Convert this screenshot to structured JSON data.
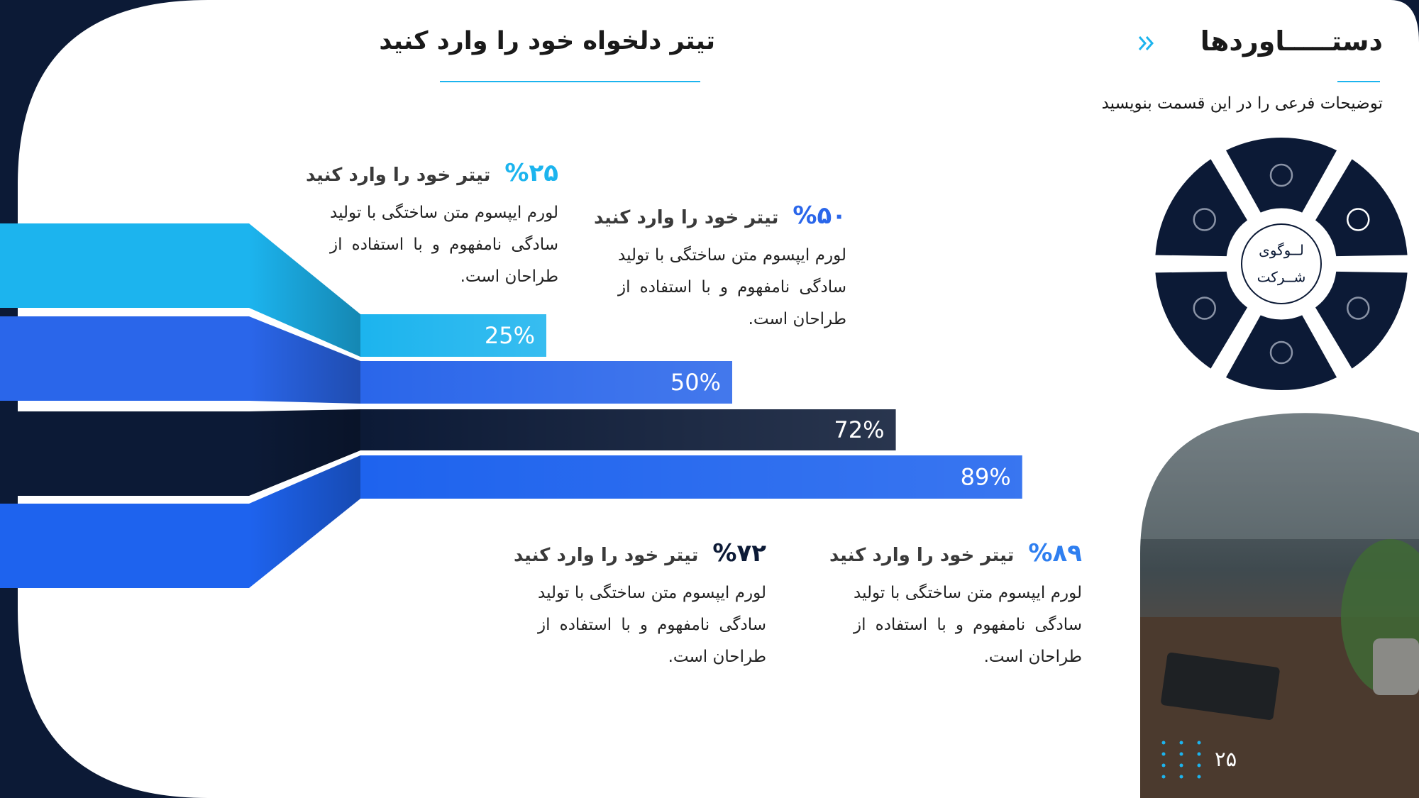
{
  "header": {
    "title": "دستـــــاوردها",
    "subtitle": "توضیحات فرعی را در این قسمت بنویسید",
    "page_number": "۲۵"
  },
  "main_title": "تیتر دلخواه خود را وارد کنید",
  "logo": [
    "لــوگوی",
    "شــرکت"
  ],
  "chart_data": {
    "type": "bar",
    "orientation": "horizontal",
    "values": [
      25,
      50,
      72,
      89
    ],
    "value_labels": [
      "25%",
      "50%",
      "72%",
      "89%"
    ],
    "colors": [
      "#1cb4ee",
      "#2a66ea",
      "#0c1a36",
      "#1e63ee"
    ],
    "xlim": [
      0,
      100
    ]
  },
  "cards": [
    {
      "percent": "%۲۵",
      "color": "#1cb4ee",
      "title": "تیتر خود را وارد کنید",
      "text": "لورم ایپسوم متن ساختگی با تولید سادگی نامفهوم و با استفاده از طراحان است."
    },
    {
      "percent": "%۵۰",
      "color": "#2a66ea",
      "title": "تیتر خود را وارد کنید",
      "text": "لورم ایپسوم متن ساختگی با تولید سادگی نامفهوم و با استفاده از طراحان است."
    },
    {
      "percent": "%۷۲",
      "color": "#0c1a36",
      "title": "تیتر خود را وارد کنید",
      "text": "لورم ایپسوم متن ساختگی با تولید سادگی نامفهوم و با استفاده از طراحان است."
    },
    {
      "percent": "%۸۹",
      "color": "#2f7ff0",
      "title": "تیتر خود را وارد کنید",
      "text": "لورم ایپسوم متن ساختگی با تولید سادگی نامفهوم و با استفاده از طراحان است."
    }
  ]
}
